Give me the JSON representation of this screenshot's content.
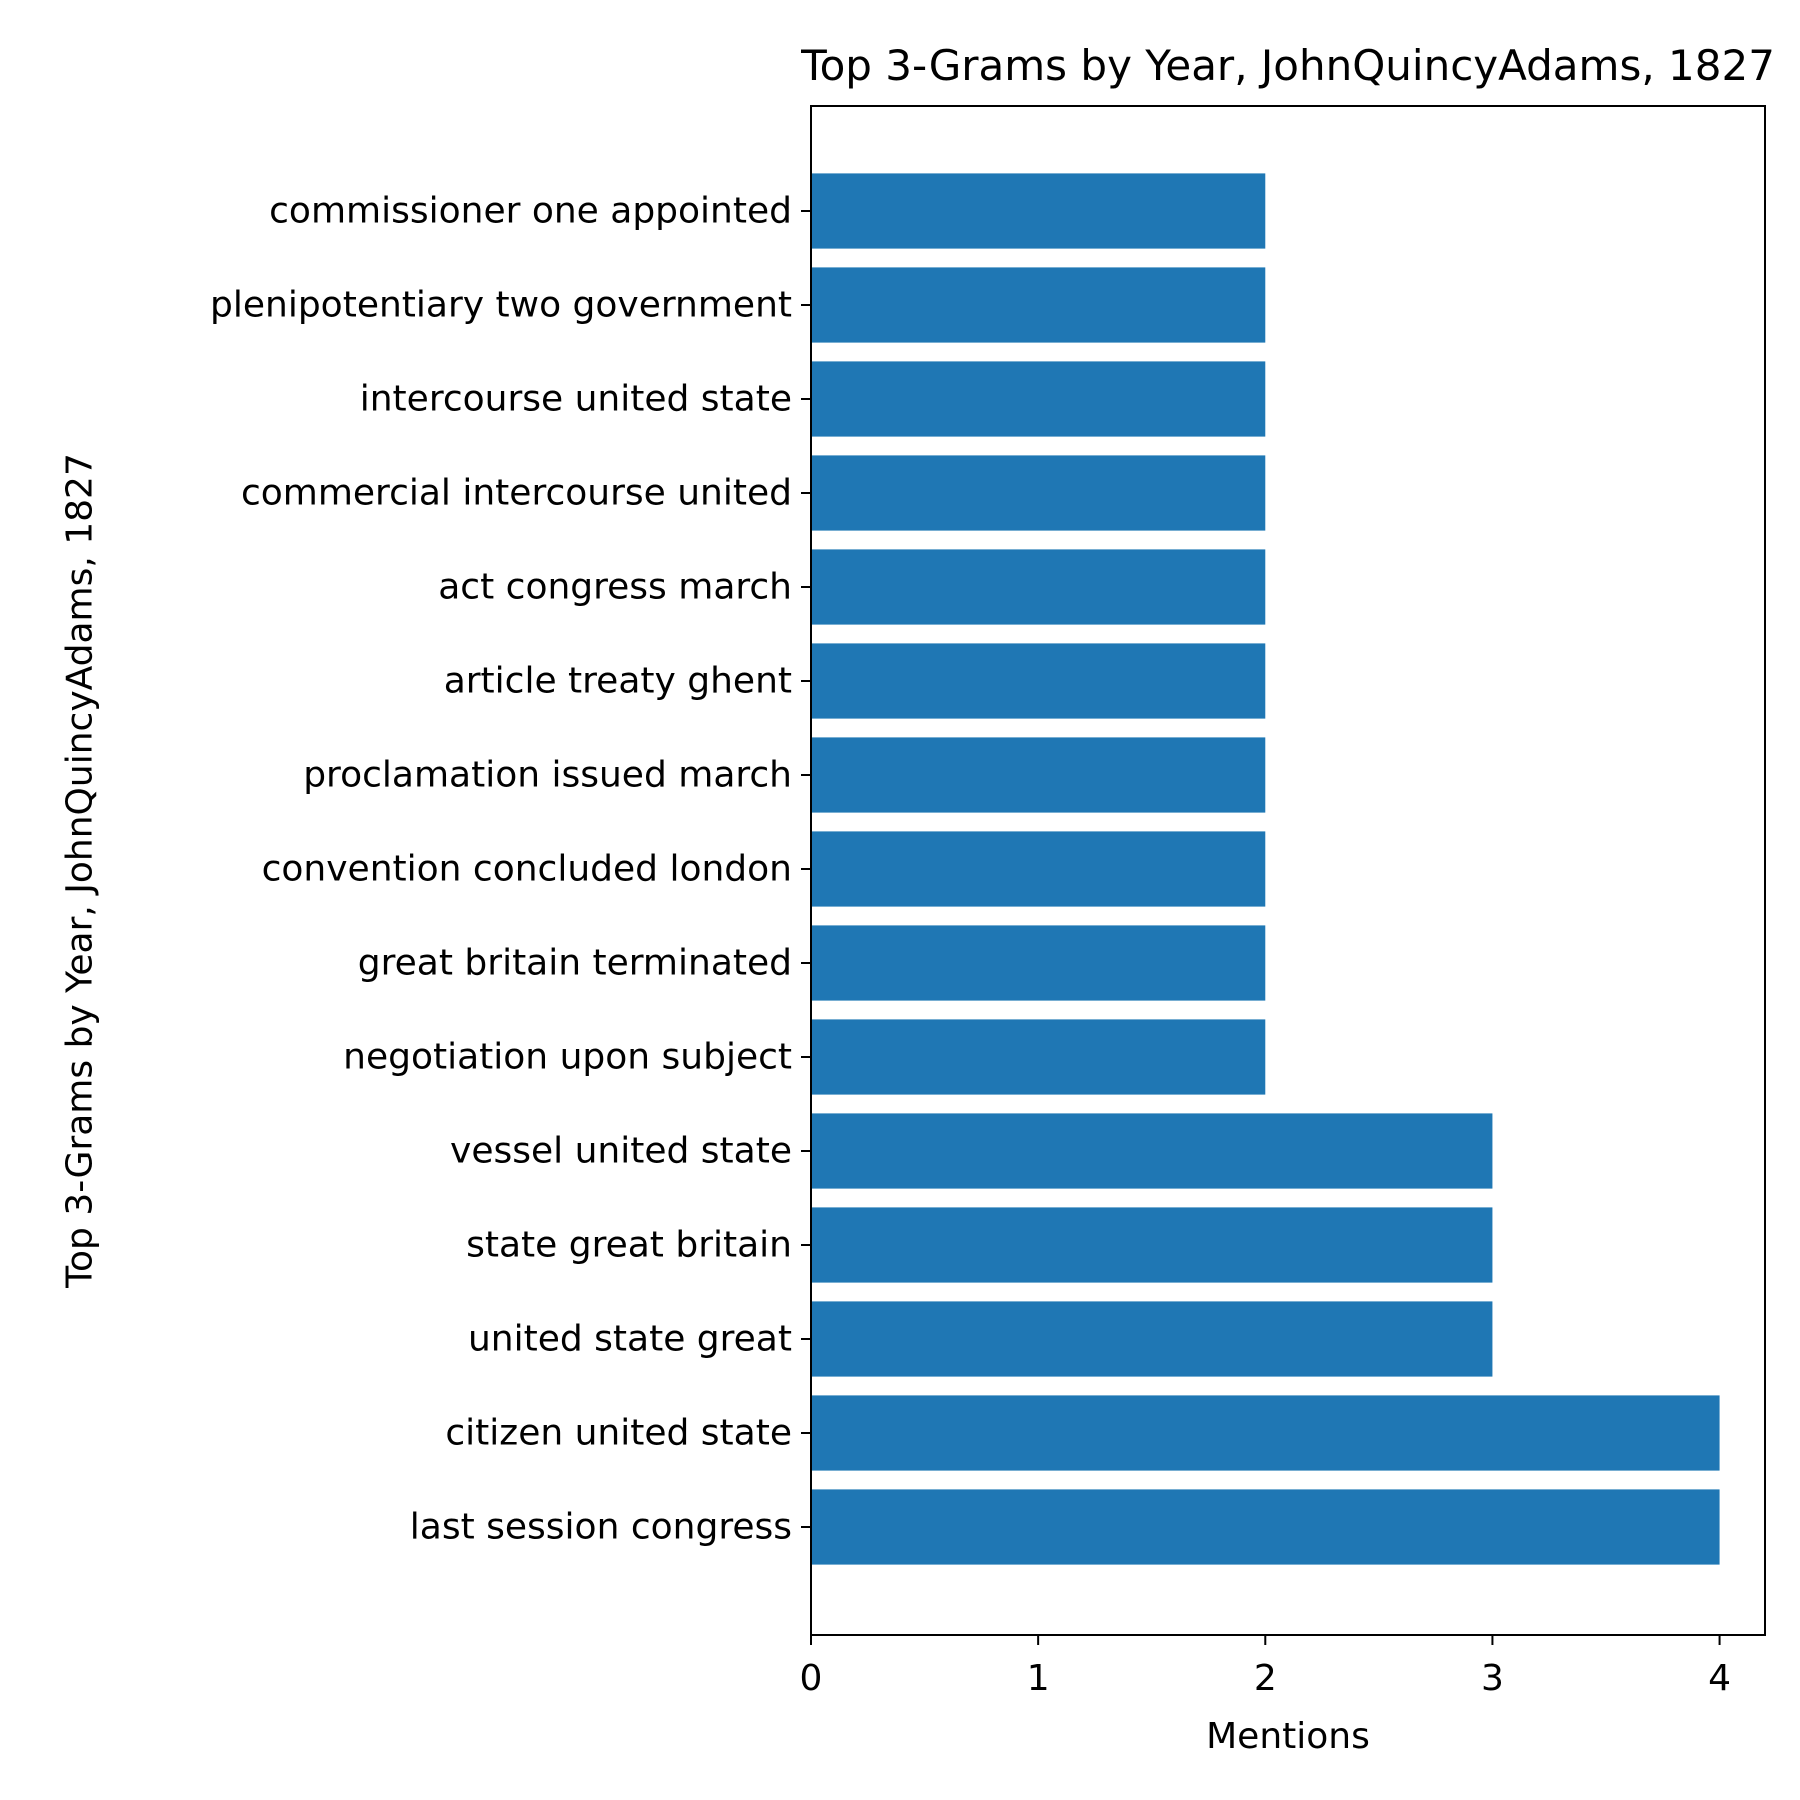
{
  "chart_data": {
    "type": "bar",
    "orientation": "horizontal",
    "title": "Top 3-Grams by Year, JohnQuincyAdams, 1827",
    "xlabel": "Mentions",
    "ylabel": "Top 3-Grams by Year, JohnQuincyAdams, 1827",
    "categories": [
      "last session congress",
      "citizen united state",
      "united state great",
      "state great britain",
      "vessel united state",
      "negotiation upon subject",
      "great britain terminated",
      "convention concluded london",
      "proclamation issued march",
      "article treaty ghent",
      "act congress march",
      "commercial intercourse united",
      "intercourse united state",
      "plenipotentiary two government",
      "commissioner one appointed"
    ],
    "values": [
      4,
      4,
      3,
      3,
      3,
      2,
      2,
      2,
      2,
      2,
      2,
      2,
      2,
      2,
      2
    ],
    "xlim": [
      0,
      4.2
    ],
    "xticks": [
      "0",
      "1",
      "2",
      "3",
      "4"
    ],
    "bar_color": "#1f77b4",
    "grid": false,
    "legend": "none"
  }
}
